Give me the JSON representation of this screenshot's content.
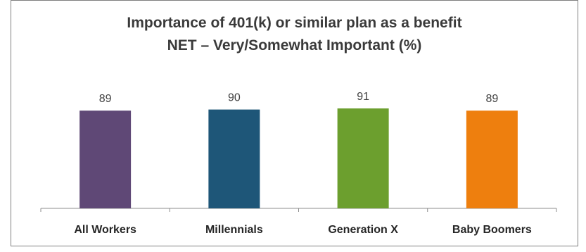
{
  "chart_data": {
    "type": "bar",
    "title": "Importance of 401(k) or similar plan as a benefit",
    "subtitle": "NET – Very/Somewhat Important (%)",
    "categories": [
      "All Workers",
      "Millennials",
      "Generation X",
      "Baby Boomers"
    ],
    "values": [
      89,
      90,
      91,
      89
    ],
    "colors": [
      "#5f4876",
      "#1e5678",
      "#6c9f2e",
      "#ee7f0e"
    ],
    "ylim": [
      0,
      100
    ],
    "grid": false,
    "legend": "none",
    "xlabel": "",
    "ylabel": ""
  }
}
